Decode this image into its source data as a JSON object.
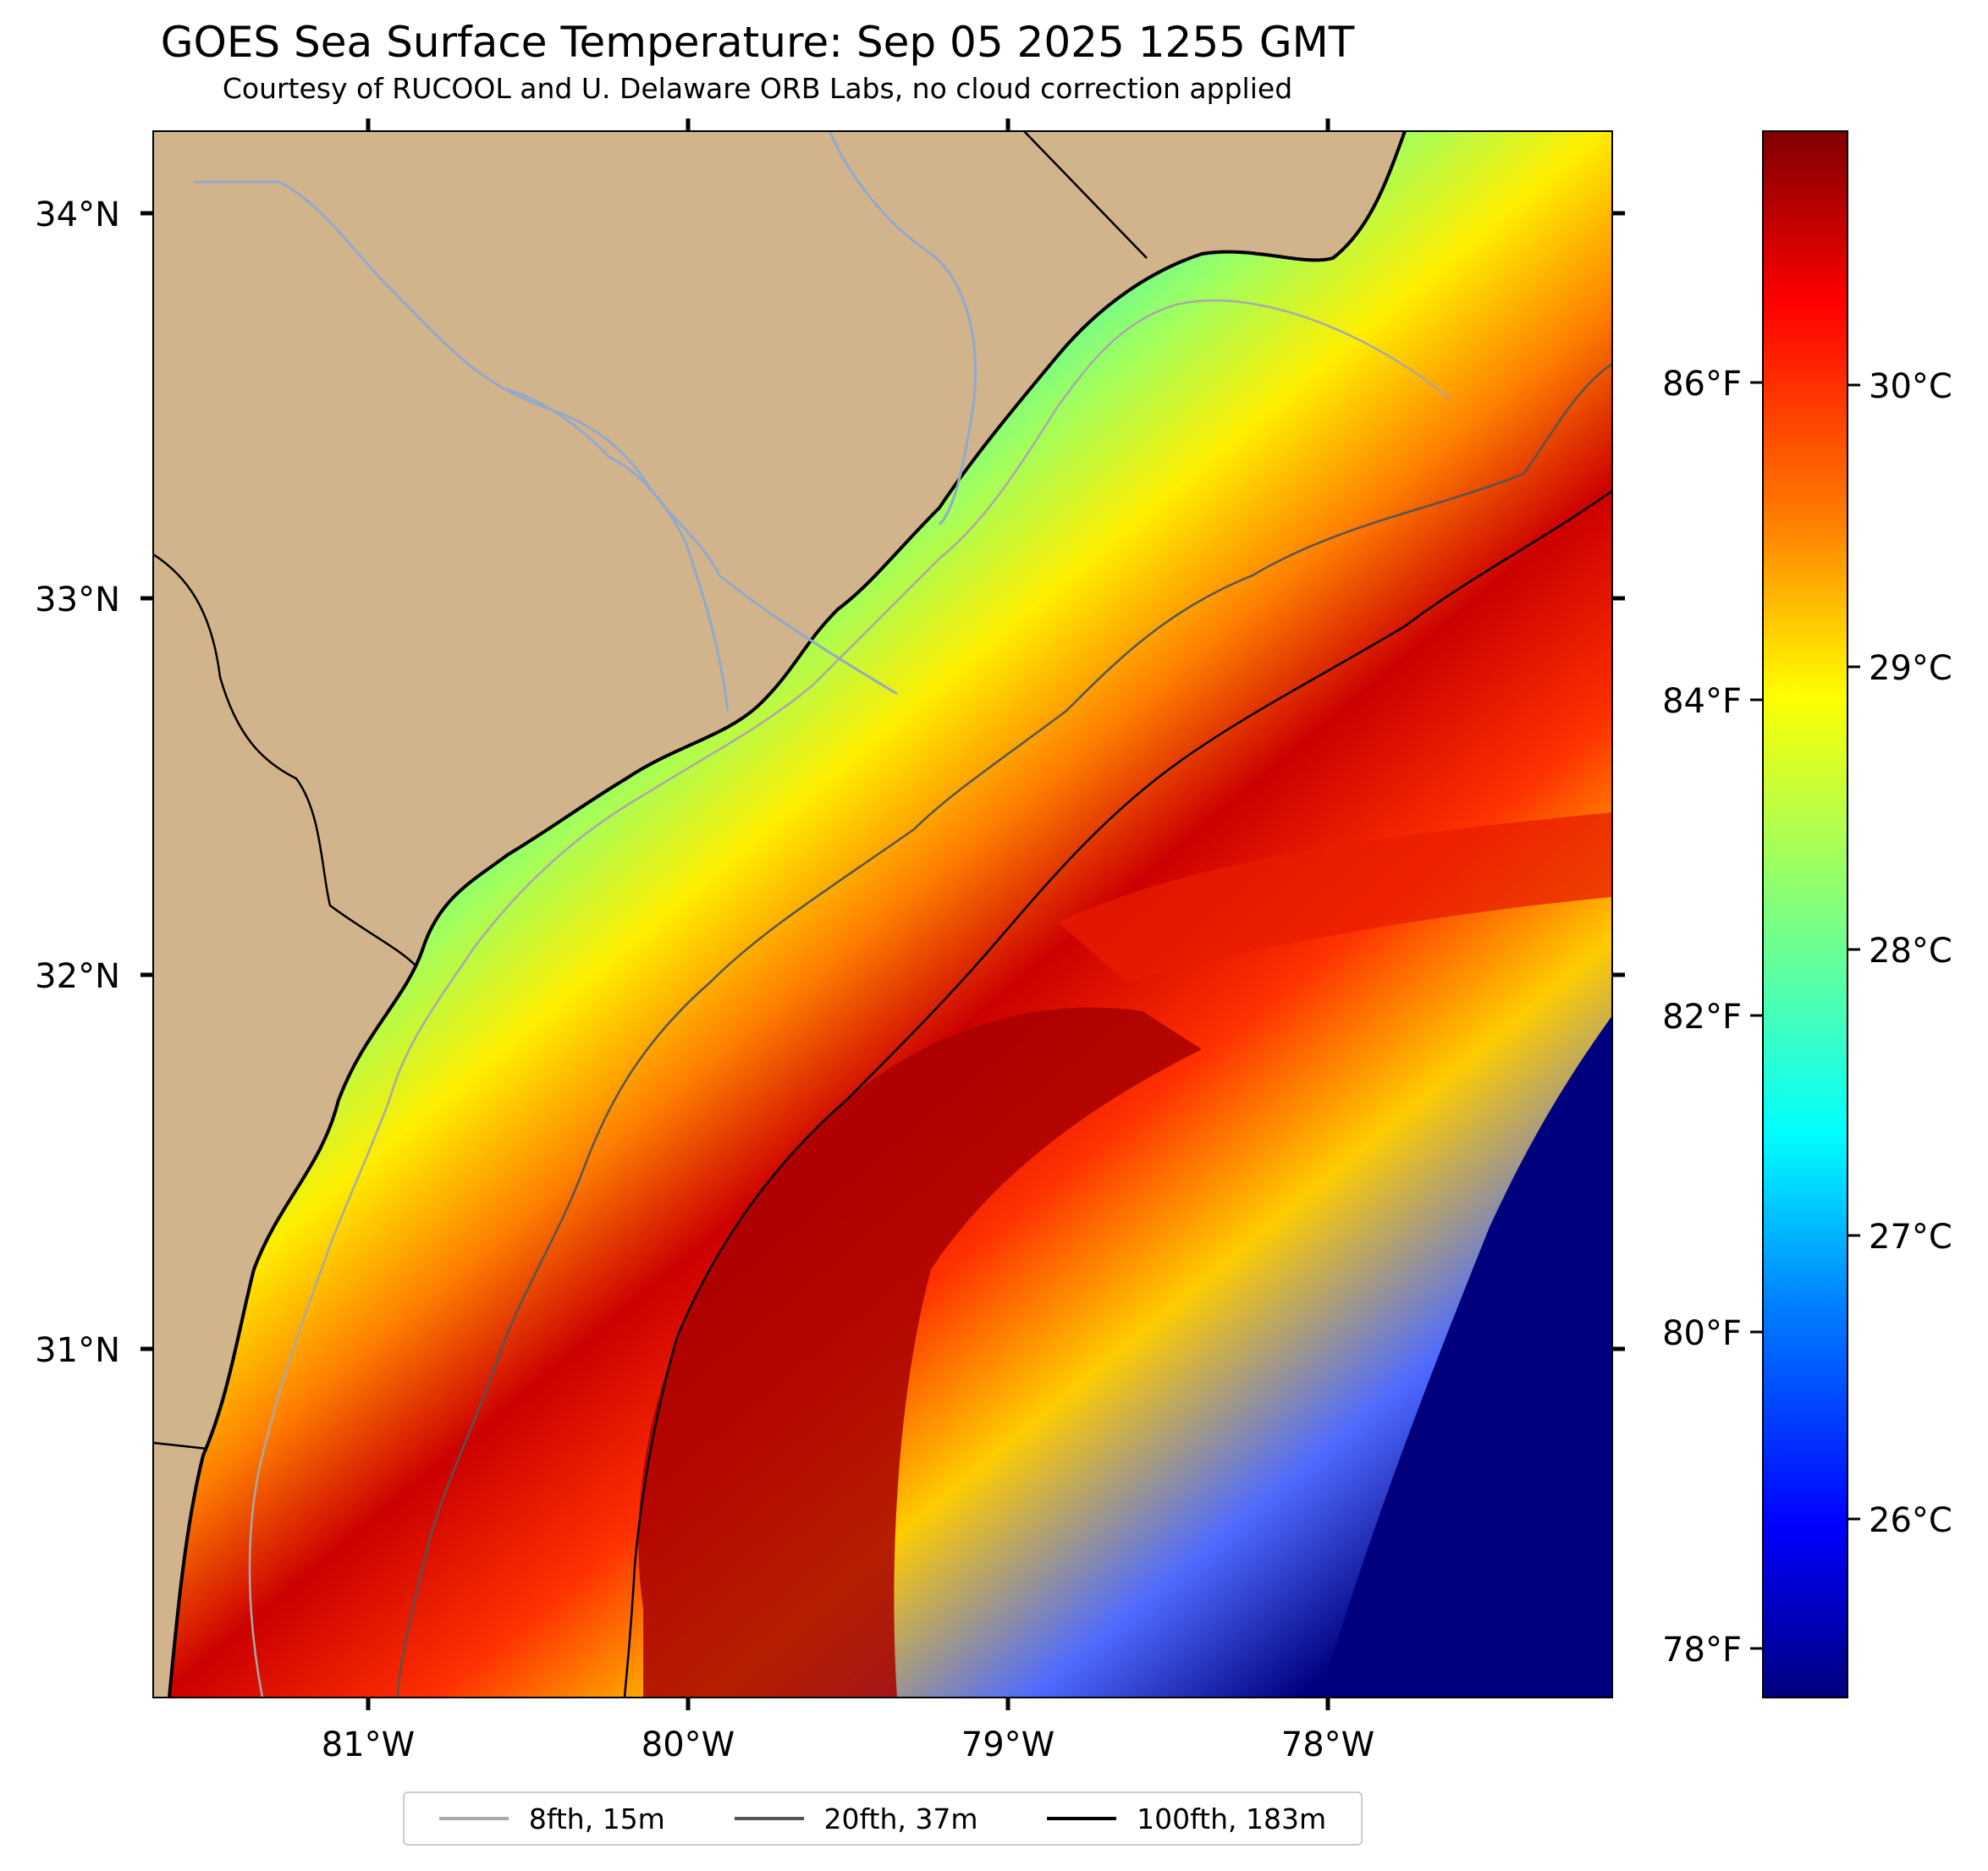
{
  "header": {
    "title": "GOES Sea Surface Temperature: Sep 05 2025 1255 GMT",
    "subtitle": "Courtesy of RUCOOL and U. Delaware ORB Labs, no cloud correction applied"
  },
  "map": {
    "lat_ticks": [
      "34°N",
      "33°N",
      "32°N",
      "31°N"
    ],
    "lon_ticks": [
      "81°W",
      "80°W",
      "79°W",
      "78°W"
    ],
    "lat_range": [
      30.1,
      34.2
    ],
    "lon_range": [
      -81.7,
      -77.15
    ],
    "land_color": "#d2b48c"
  },
  "colorbar": {
    "celsius_ticks": [
      "30°C",
      "29°C",
      "28°C",
      "27°C",
      "26°C"
    ],
    "fahrenheit_ticks": [
      "86°F",
      "84°F",
      "82°F",
      "80°F",
      "78°F"
    ],
    "colormap": "jet",
    "colors": [
      "#00007f",
      "#0000ff",
      "#007fff",
      "#00ffff",
      "#7fff7f",
      "#ffff00",
      "#ff7f00",
      "#ff0000",
      "#7f0000"
    ]
  },
  "legend": {
    "items": [
      {
        "label": "8fth, 15m",
        "color": "#aaaaaa"
      },
      {
        "label": "20fth, 37m",
        "color": "#555555"
      },
      {
        "label": "100fth, 183m",
        "color": "#000000"
      }
    ]
  }
}
